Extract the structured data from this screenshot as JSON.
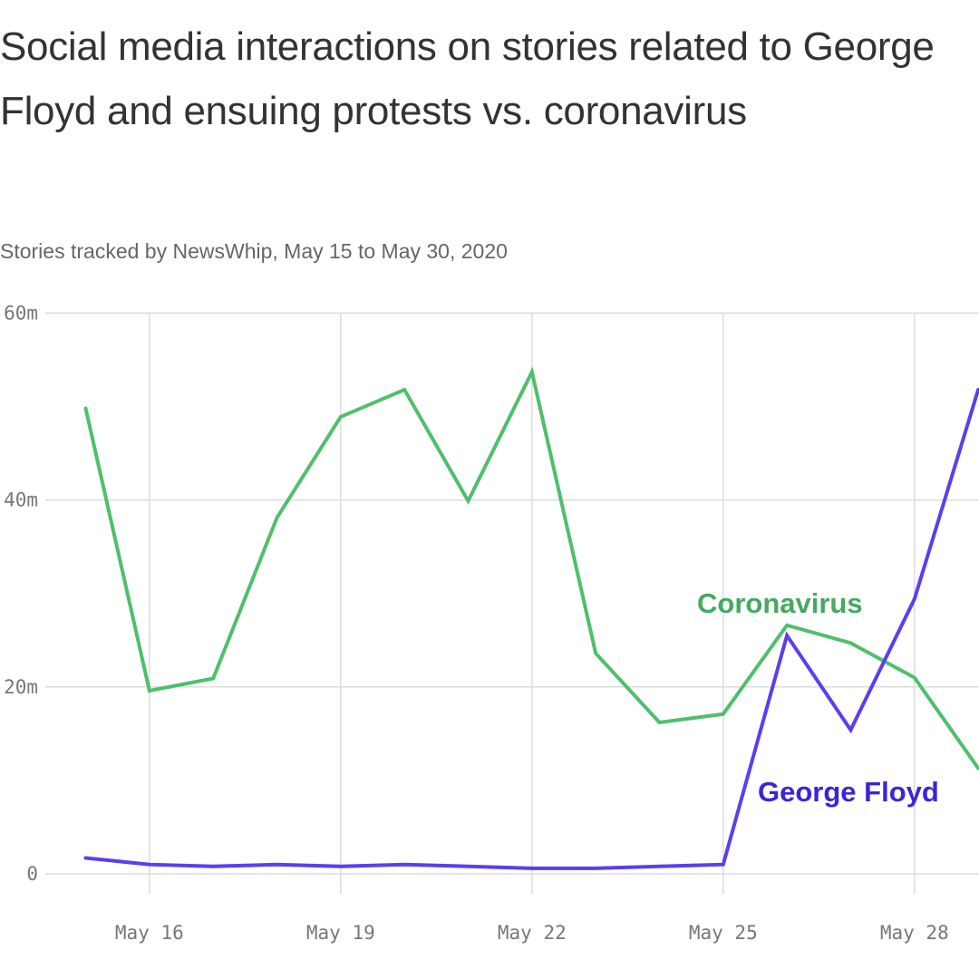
{
  "chart_data": {
    "type": "line",
    "title": "Social media interactions on stories related to George Floyd and ensuing protests vs. coronavirus",
    "subtitle": "Stories tracked by NewsWhip, May 15 to May 30, 2020",
    "xlabel": "",
    "ylabel": "",
    "x": [
      15,
      16,
      17,
      18,
      19,
      20,
      21,
      22,
      23,
      24,
      25,
      26,
      27,
      28,
      29
    ],
    "x_ticks": [
      16,
      19,
      22,
      25,
      28
    ],
    "x_tick_labels": [
      "May 16",
      "May 19",
      "May 22",
      "May 25",
      "May 28"
    ],
    "y_ticks": [
      0,
      20,
      40,
      60
    ],
    "y_tick_labels": [
      "0",
      "20m",
      "40m",
      "60m"
    ],
    "ylim": [
      0,
      60
    ],
    "grid": true,
    "series": [
      {
        "name": "Coronavirus",
        "color": "#4fbf6c",
        "label_color": "#45a95f",
        "values": [
          49.8,
          19.6,
          20.9,
          38.1,
          48.9,
          51.8,
          39.9,
          53.7,
          23.6,
          16.2,
          17.1,
          26.6,
          24.7,
          21.0,
          11.3
        ]
      },
      {
        "name": "George Floyd",
        "color": "#5a3ff0",
        "label_color": "#3a25d8",
        "values": [
          1.7,
          1.0,
          0.8,
          1.0,
          0.8,
          1.0,
          0.8,
          0.6,
          0.6,
          0.8,
          1.0,
          25.5,
          15.4,
          29.4,
          51.8
        ]
      }
    ]
  }
}
